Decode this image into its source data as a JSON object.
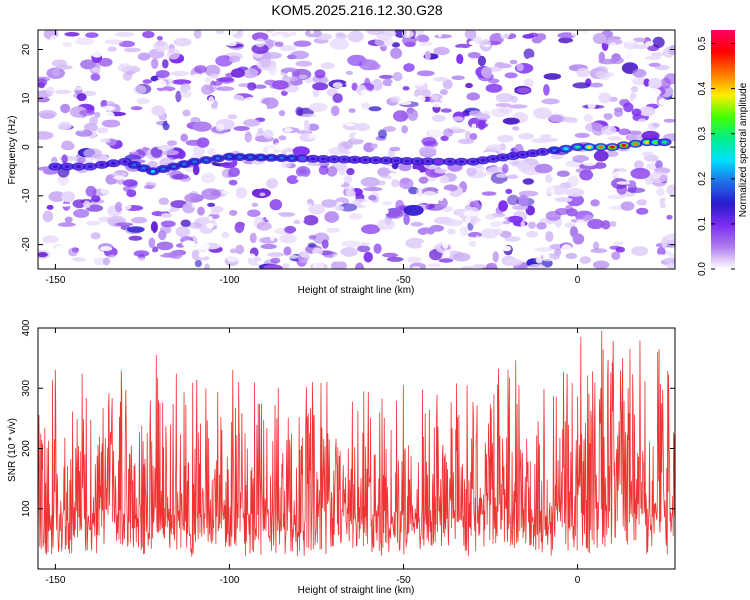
{
  "figure": {
    "title": "KOM5.2025.216.12.30.G28"
  },
  "chart_data": [
    {
      "type": "heatmap",
      "xlabel": "Height of straight line (km)",
      "ylabel": "Frequency (Hz)",
      "xlim": [
        -155,
        28
      ],
      "ylim": [
        -25,
        24
      ],
      "xticks": [
        -150,
        -100,
        -50,
        0
      ],
      "yticks": [
        -20,
        -10,
        0,
        10,
        20
      ],
      "colorbar": {
        "label": "Normalized spectral amplitude",
        "range": [
          0.0,
          0.53
        ],
        "ticks": [
          0.0,
          0.1,
          0.2,
          0.3,
          0.4,
          0.5
        ],
        "colors": [
          "#ffffff",
          "#b07ef0",
          "#7d2ef0",
          "#2a1acc",
          "#1f6ee8",
          "#00e0ff",
          "#00ee88",
          "#44ff00",
          "#ffee00",
          "#ff7700",
          "#ff0000",
          "#ff0066"
        ]
      },
      "ridge": [
        {
          "x": -150,
          "y": -4,
          "a": 0.14
        },
        {
          "x": -140,
          "y": -4,
          "a": 0.15
        },
        {
          "x": -130,
          "y": -3,
          "a": 0.16
        },
        {
          "x": -122,
          "y": -5,
          "a": 0.22
        },
        {
          "x": -110,
          "y": -3,
          "a": 0.2
        },
        {
          "x": -100,
          "y": -2,
          "a": 0.2
        },
        {
          "x": -40,
          "y": -3,
          "a": 0.12
        },
        {
          "x": -30,
          "y": -3,
          "a": 0.15
        },
        {
          "x": -10,
          "y": -1,
          "a": 0.15
        },
        {
          "x": 0,
          "y": 0,
          "a": 0.3
        },
        {
          "x": 10,
          "y": 0,
          "a": 0.5
        },
        {
          "x": 20,
          "y": 1,
          "a": 0.4
        },
        {
          "x": 25,
          "y": 1,
          "a": 0.28
        }
      ]
    },
    {
      "type": "line",
      "xlabel": "Height of straight line (km)",
      "ylabel": "SNR (10 * v/v)",
      "xlim": [
        -155,
        28
      ],
      "ylim": [
        0,
        400
      ],
      "xticks": [
        -150,
        -100,
        -50,
        0
      ],
      "yticks": [
        100,
        200,
        300,
        400
      ],
      "color": "#ee3333",
      "mean_envelope": [
        {
          "x": -155,
          "y": 120
        },
        {
          "x": -120,
          "y": 125
        },
        {
          "x": -80,
          "y": 115
        },
        {
          "x": -40,
          "y": 120
        },
        {
          "x": -10,
          "y": 135
        },
        {
          "x": 0,
          "y": 150
        },
        {
          "x": 10,
          "y": 160
        },
        {
          "x": 20,
          "y": 150
        },
        {
          "x": 28,
          "y": 140
        }
      ],
      "peaks": [
        {
          "x": -150,
          "y": 330
        },
        {
          "x": -121,
          "y": 355
        },
        {
          "x": -99,
          "y": 330
        },
        {
          "x": -86,
          "y": 300
        },
        {
          "x": -72,
          "y": 310
        },
        {
          "x": -50,
          "y": 305
        },
        {
          "x": -20,
          "y": 330
        },
        {
          "x": 1,
          "y": 385
        },
        {
          "x": 7,
          "y": 395
        },
        {
          "x": 15,
          "y": 365
        },
        {
          "x": 23,
          "y": 360
        }
      ]
    }
  ]
}
